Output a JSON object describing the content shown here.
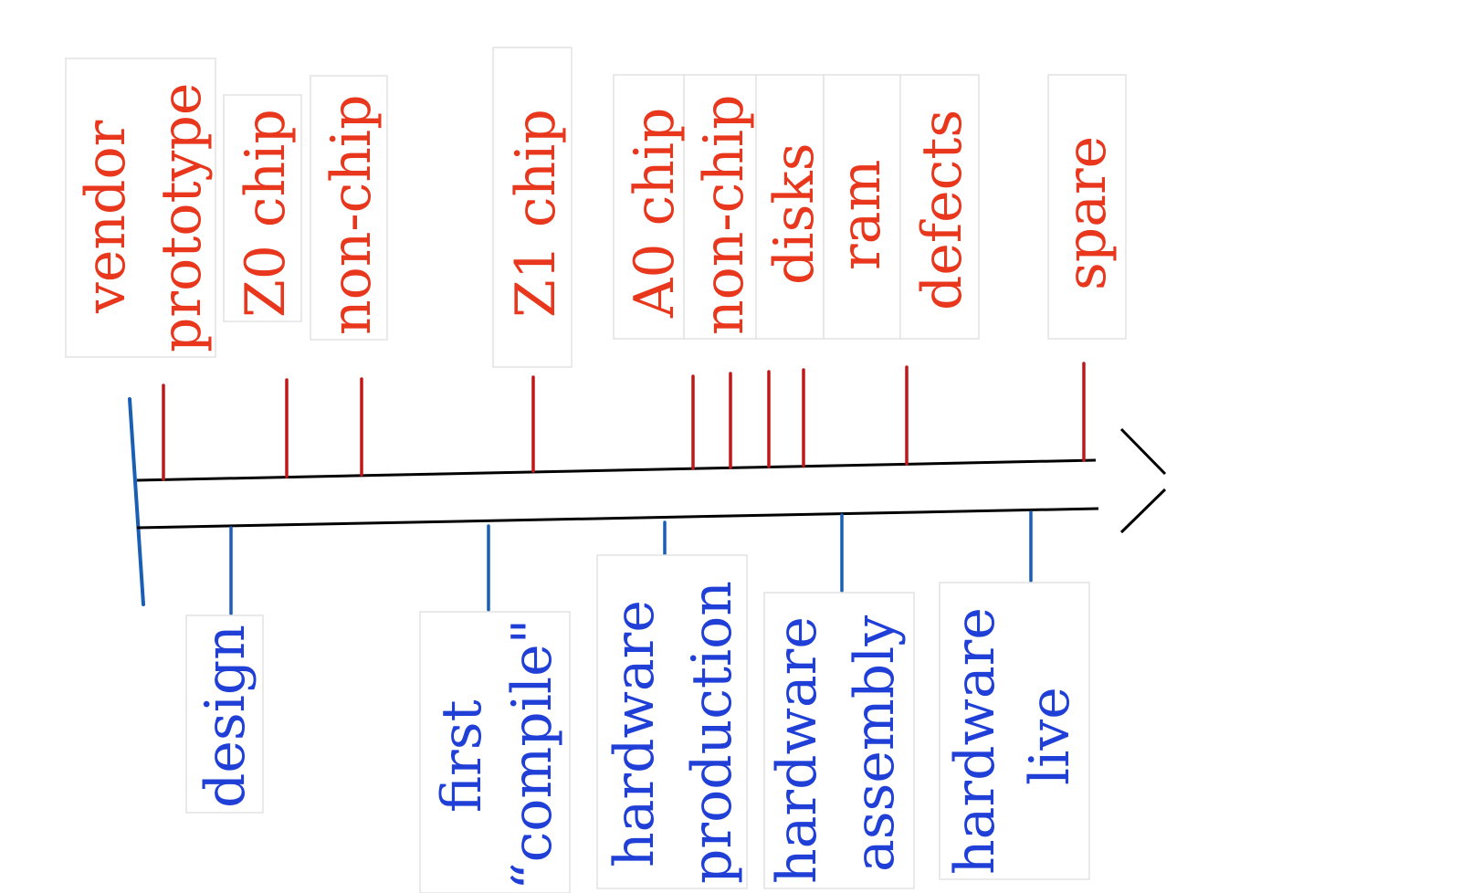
{
  "diagram": {
    "colors": {
      "top_label": "#e8371c",
      "top_tick": "#c0181a",
      "bottom_label": "#1f3fd6",
      "bottom_tick": "#1a5fb4",
      "axis": "#000000",
      "box_border": "#e2e2e2"
    },
    "top_markers": [
      {
        "id": "vendor",
        "lines": [
          "vendor",
          "prototype"
        ]
      },
      {
        "id": "z0",
        "lines": [
          "Z0 chip"
        ]
      },
      {
        "id": "nonchip1",
        "lines": [
          "non-chip"
        ]
      },
      {
        "id": "z1",
        "lines": [
          "Z1 chip"
        ]
      },
      {
        "id": "a0",
        "lines": [
          "A0 chip"
        ]
      },
      {
        "id": "nonchip2",
        "lines": [
          "non-chip"
        ]
      },
      {
        "id": "disks",
        "lines": [
          "disks"
        ]
      },
      {
        "id": "ram",
        "lines": [
          "ram"
        ]
      },
      {
        "id": "defects",
        "lines": [
          "defects"
        ]
      },
      {
        "id": "spare",
        "lines": [
          "spare"
        ]
      }
    ],
    "bottom_markers": [
      {
        "id": "design",
        "lines": [
          "design"
        ]
      },
      {
        "id": "first-compile",
        "lines": [
          "first",
          "“compile\""
        ]
      },
      {
        "id": "hw-production",
        "lines": [
          "hardware",
          "production"
        ]
      },
      {
        "id": "hw-assembly",
        "lines": [
          "hardware",
          "assembly"
        ]
      },
      {
        "id": "hw-live",
        "lines": [
          "hardware",
          "live"
        ]
      }
    ]
  }
}
